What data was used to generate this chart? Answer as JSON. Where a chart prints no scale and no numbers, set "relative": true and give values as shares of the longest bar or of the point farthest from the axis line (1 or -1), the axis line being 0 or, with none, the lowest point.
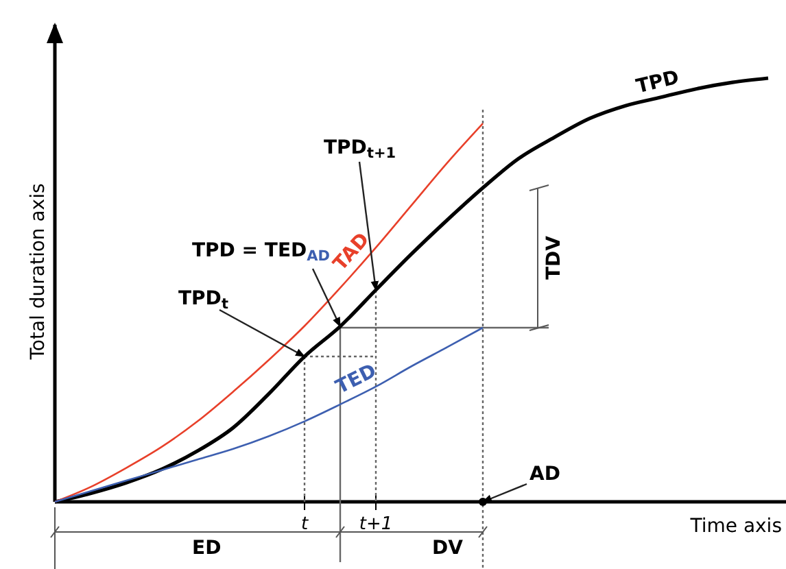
{
  "chart_data": {
    "type": "line",
    "relative": true,
    "xlabel": "Time axis",
    "ylabel": "Total duration axis",
    "tick_labels": "x",
    "categories": [
      null,
      null,
      null,
      null,
      null,
      null,
      null,
      "t",
      null,
      "t+1",
      null,
      null,
      null,
      null,
      null,
      null,
      null,
      null,
      null,
      null,
      null
    ],
    "series": [
      {
        "name": "TPD",
        "color": "#000000",
        "values": [
          0,
          0.02,
          0.045,
          0.077,
          0.12,
          0.175,
          0.255,
          0.343,
          0.414,
          0.5,
          0.585,
          0.665,
          0.741,
          0.81,
          0.86,
          0.905,
          0.935,
          0.955,
          0.975,
          0.99,
          1
        ]
      },
      {
        "name": "TAD",
        "color": "#e8402a",
        "values": [
          0,
          0.035,
          0.08,
          0.13,
          0.19,
          0.26,
          0.335,
          0.415,
          0.505,
          0.6,
          0.7,
          0.8,
          0.893,
          null,
          null,
          null,
          null,
          null,
          null,
          null,
          null
        ]
      },
      {
        "name": "TED",
        "color": "#3d5fb0",
        "values": [
          0,
          0.025,
          0.05,
          0.075,
          0.1,
          0.125,
          0.155,
          0.19,
          0.23,
          0.272,
          0.32,
          0.365,
          0.411,
          null,
          null,
          null,
          null,
          null,
          null,
          null,
          null
        ]
      }
    ],
    "annotations": [
      "TPD = TED$_{AD}$",
      "TPD$_{t}$",
      "TPD$_{t+1}$",
      "AD",
      "TDV",
      "ED",
      "DV"
    ]
  }
}
